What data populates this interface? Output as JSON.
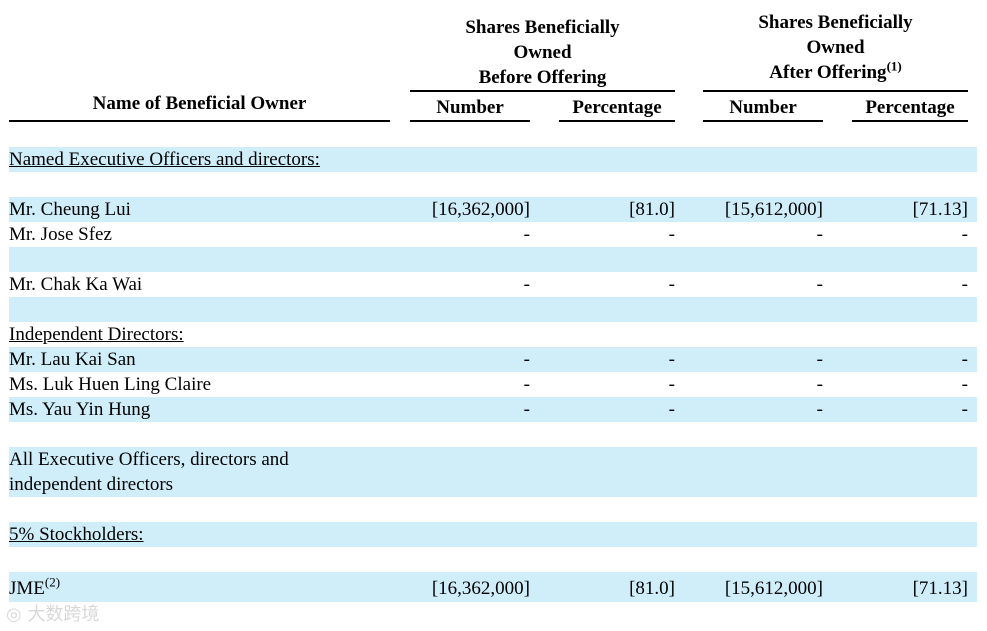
{
  "header": {
    "name_col": "Name of Beneficial Owner",
    "before_title_lines": [
      "Shares Beneficially",
      "Owned",
      "Before Offering"
    ],
    "after_title_lines": [
      "Shares Beneficially",
      "Owned",
      "After Offering"
    ],
    "after_footnote": "(1)",
    "number": "Number",
    "percentage": "Percentage"
  },
  "rows": [
    {
      "name": "Named Executive Officers and directors:",
      "section": true
    },
    {
      "name": ""
    },
    {
      "name": "Mr. Cheung Lui",
      "v": [
        "[16,362,000]",
        "[81.0]",
        "[15,612,000]",
        "[71.13]"
      ]
    },
    {
      "name": "Mr. Jose Sfez",
      "v": [
        "-",
        "-",
        "-",
        "-"
      ]
    },
    {
      "name": ""
    },
    {
      "name": "Mr. Chak Ka Wai",
      "v": [
        "-",
        "-",
        "-",
        "-"
      ]
    },
    {
      "name": ""
    },
    {
      "name": "Independent Directors:",
      "section": true
    },
    {
      "name": "Mr. Lau Kai San",
      "v": [
        "-",
        "-",
        "-",
        "-"
      ]
    },
    {
      "name": "Ms. Luk Huen Ling Claire",
      "v": [
        "-",
        "-",
        "-",
        "-"
      ]
    },
    {
      "name": "Ms. Yau Yin Hung",
      "v": [
        "-",
        "-",
        "-",
        "-"
      ]
    },
    {
      "name": ""
    },
    {
      "name": "All Executive Officers, directors and"
    },
    {
      "name": "independent directors"
    },
    {
      "name": ""
    },
    {
      "name": "5% Stockholders:",
      "section": true
    },
    {
      "name": ""
    },
    {
      "name": "JME",
      "footnote": "(2)",
      "v": [
        "[16,362,000]",
        "[81.0]",
        "[15,612,000]",
        "[71.13]"
      ]
    }
  ],
  "watermark": "大数跨境",
  "colors": {
    "row_shade": "#cfeefa"
  }
}
